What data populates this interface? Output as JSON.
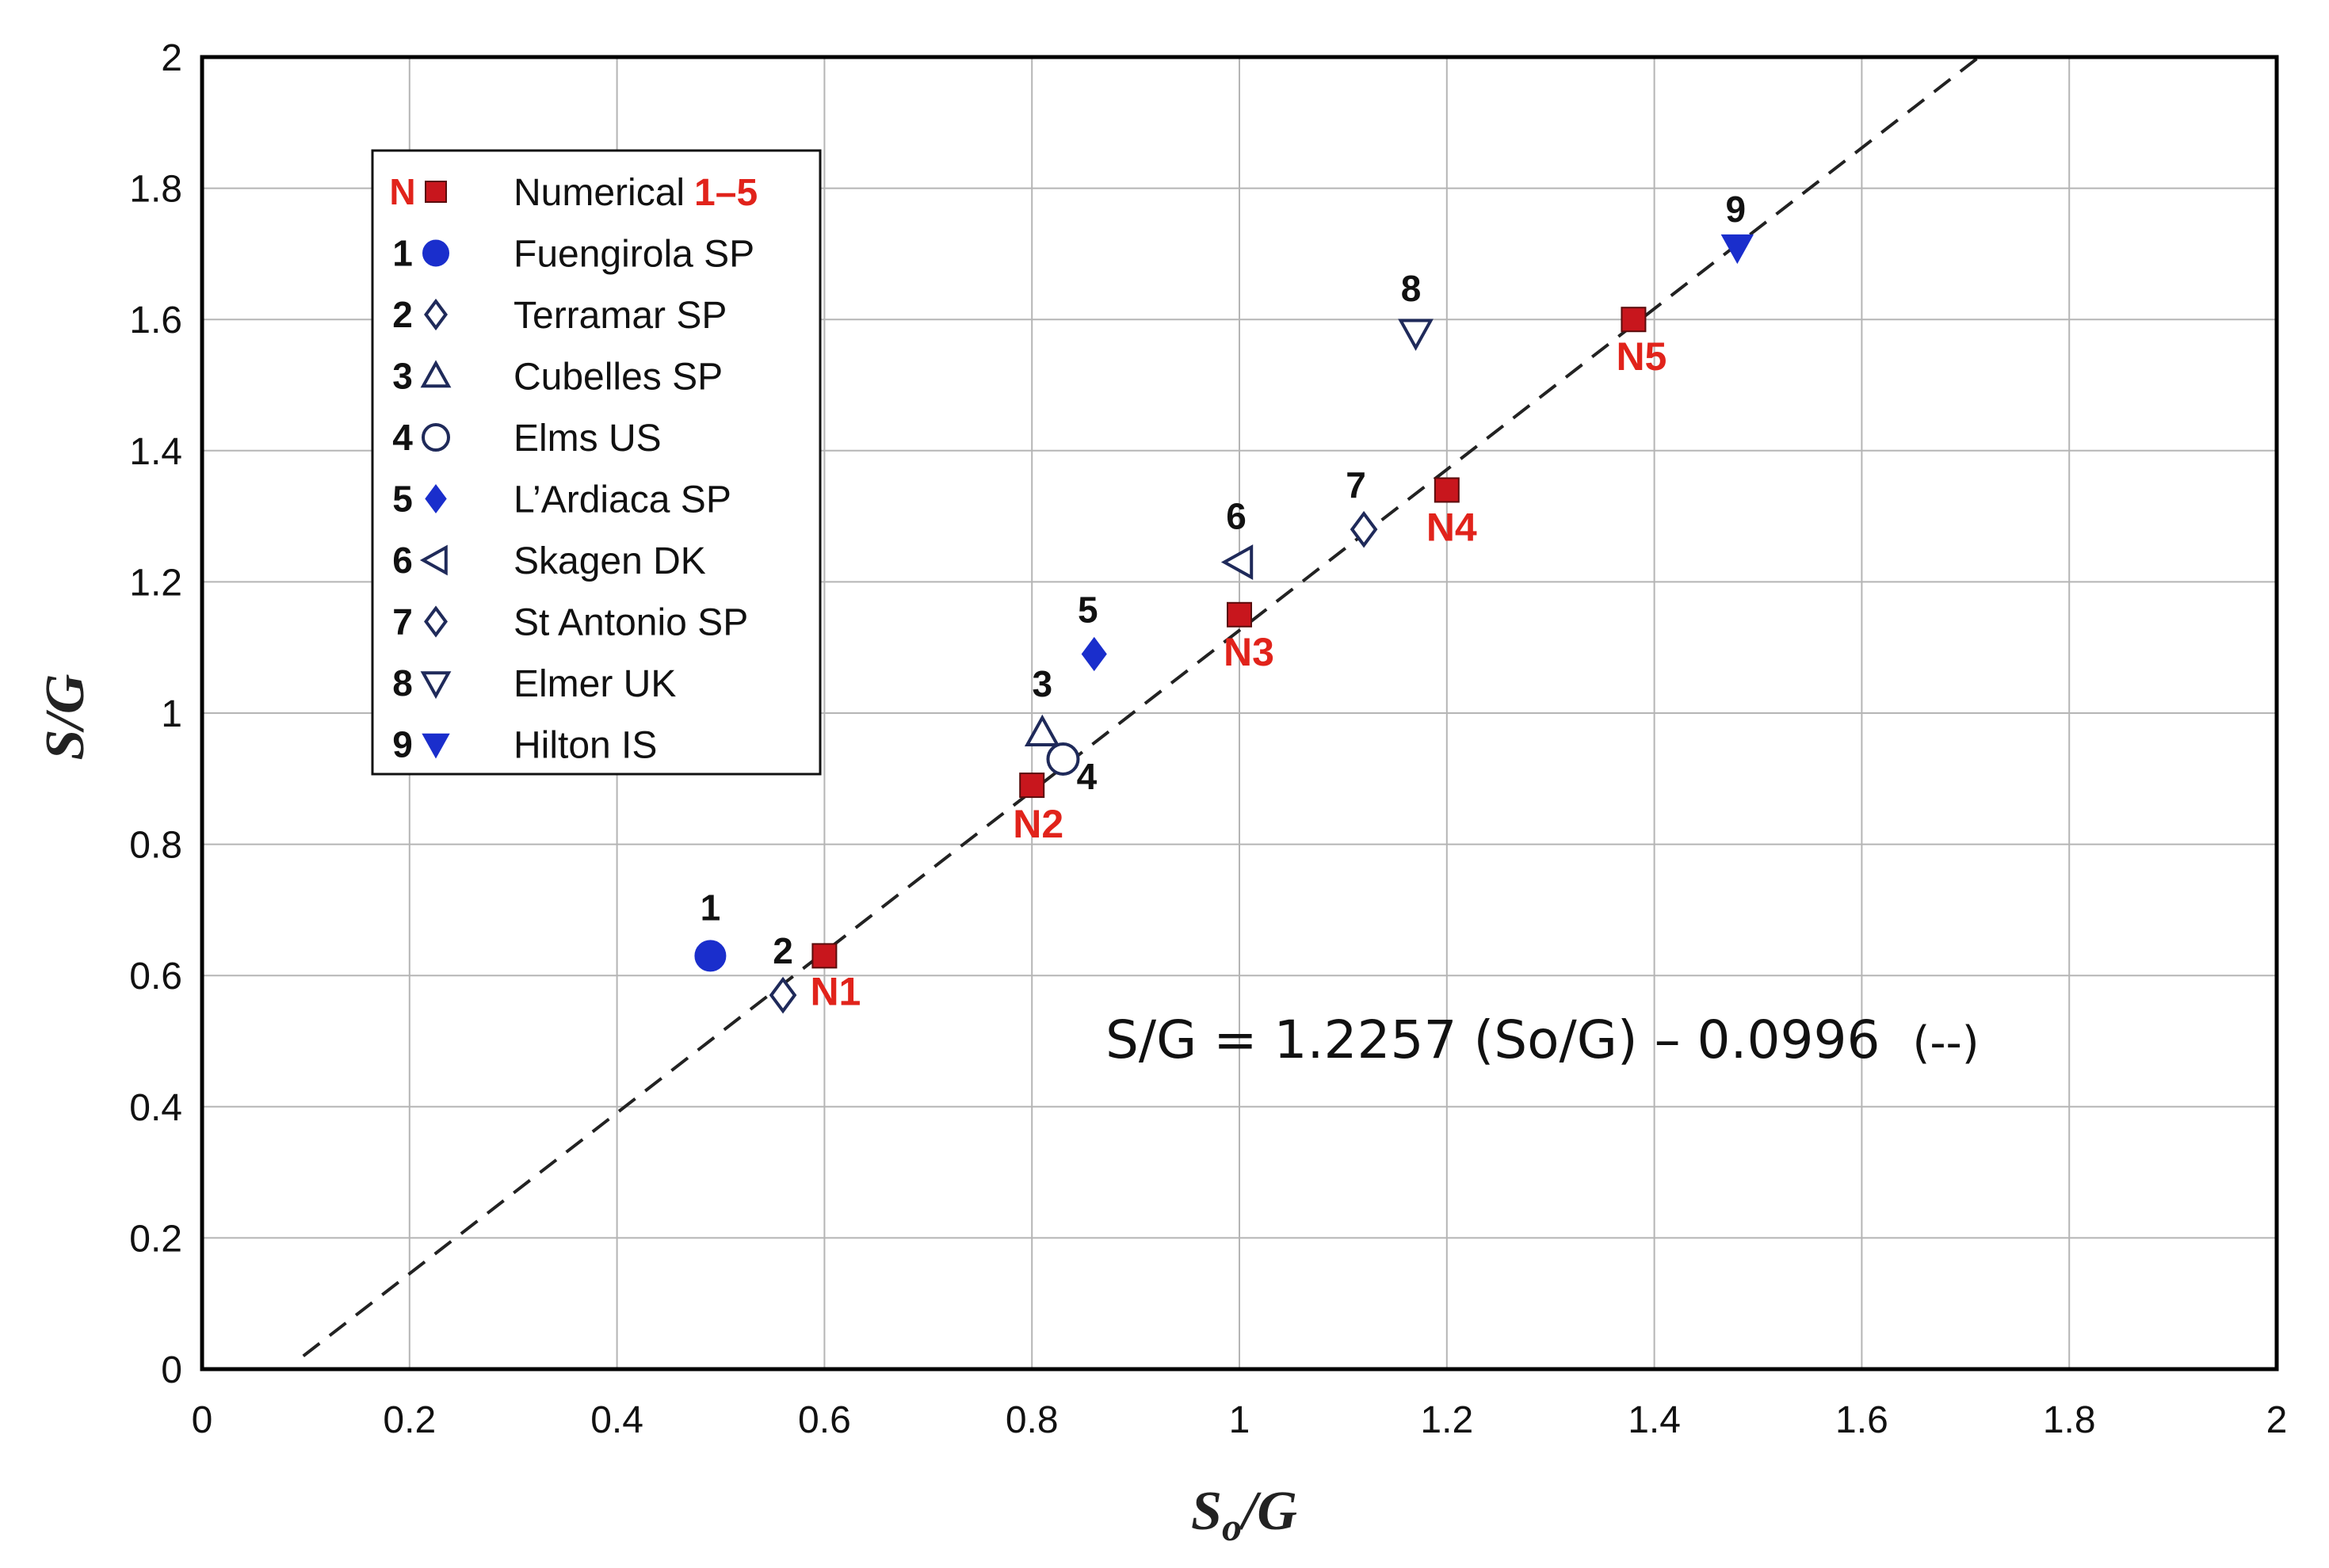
{
  "chart_data": {
    "type": "scatter",
    "title": "",
    "xlabel": "S",
    "xlabel_sub": "o",
    "xlabel_tail": "/G",
    "ylabel": "S/G",
    "xlim": [
      0,
      2
    ],
    "ylim": [
      0,
      2
    ],
    "grid": true,
    "legend_position": "top-left",
    "xticks": [
      "0",
      "0.2",
      "0.4",
      "0.6",
      "0.8",
      "1",
      "1.2",
      "1.4",
      "1.6",
      "1.8",
      "2"
    ],
    "yticks": [
      "0",
      "0.2",
      "0.4",
      "0.6",
      "0.8",
      "1",
      "1.2",
      "1.4",
      "1.6",
      "1.8",
      "2"
    ],
    "fit_line": {
      "slope": 1.2257,
      "intercept": -0.0996,
      "style": "dashed",
      "equation_text": "S/G =  1.2257 (So/G) – 0.0996",
      "equation_style": "(--)"
    },
    "numerical": {
      "legend_key": "N",
      "legend_label": "Numerical",
      "legend_suffix": "1–5",
      "color": "#c8161d",
      "points": [
        {
          "label": "N1",
          "x": 0.6,
          "y": 0.63
        },
        {
          "label": "N2",
          "x": 0.8,
          "y": 0.89
        },
        {
          "label": "N3",
          "x": 1.0,
          "y": 1.15
        },
        {
          "label": "N4",
          "x": 1.2,
          "y": 1.34
        },
        {
          "label": "N5",
          "x": 1.38,
          "y": 1.6
        }
      ]
    },
    "field_sites": [
      {
        "id": "1",
        "name": "Fuengirola SP",
        "marker": "circle-filled",
        "color": "#1a2ecc",
        "x": 0.49,
        "y": 0.63
      },
      {
        "id": "2",
        "name": "Terramar SP",
        "marker": "diamond-open",
        "color": "#1f2a5a",
        "x": 0.56,
        "y": 0.57
      },
      {
        "id": "3",
        "name": "Cubelles SP",
        "marker": "triangle-up-open",
        "color": "#1f2a5a",
        "x": 0.81,
        "y": 0.97
      },
      {
        "id": "4",
        "name": "Elms US",
        "marker": "circle-open",
        "color": "#1f2a5a",
        "x": 0.83,
        "y": 0.93
      },
      {
        "id": "5",
        "name": "L’Ardiaca SP",
        "marker": "diamond-filled",
        "color": "#1a2ecc",
        "x": 0.86,
        "y": 1.09
      },
      {
        "id": "6",
        "name": "Skagen DK",
        "marker": "triangle-left-open",
        "color": "#1f2a5a",
        "x": 1.0,
        "y": 1.23
      },
      {
        "id": "7",
        "name": "St Antonio SP",
        "marker": "diamond-open",
        "color": "#1f2a5a",
        "x": 1.12,
        "y": 1.28
      },
      {
        "id": "8",
        "name": "Elmer UK",
        "marker": "triangle-down-open",
        "color": "#1f2a5a",
        "x": 1.17,
        "y": 1.58
      },
      {
        "id": "9",
        "name": "Hilton IS",
        "marker": "triangle-down-filled",
        "color": "#1a2ecc",
        "x": 1.48,
        "y": 1.71
      }
    ]
  }
}
